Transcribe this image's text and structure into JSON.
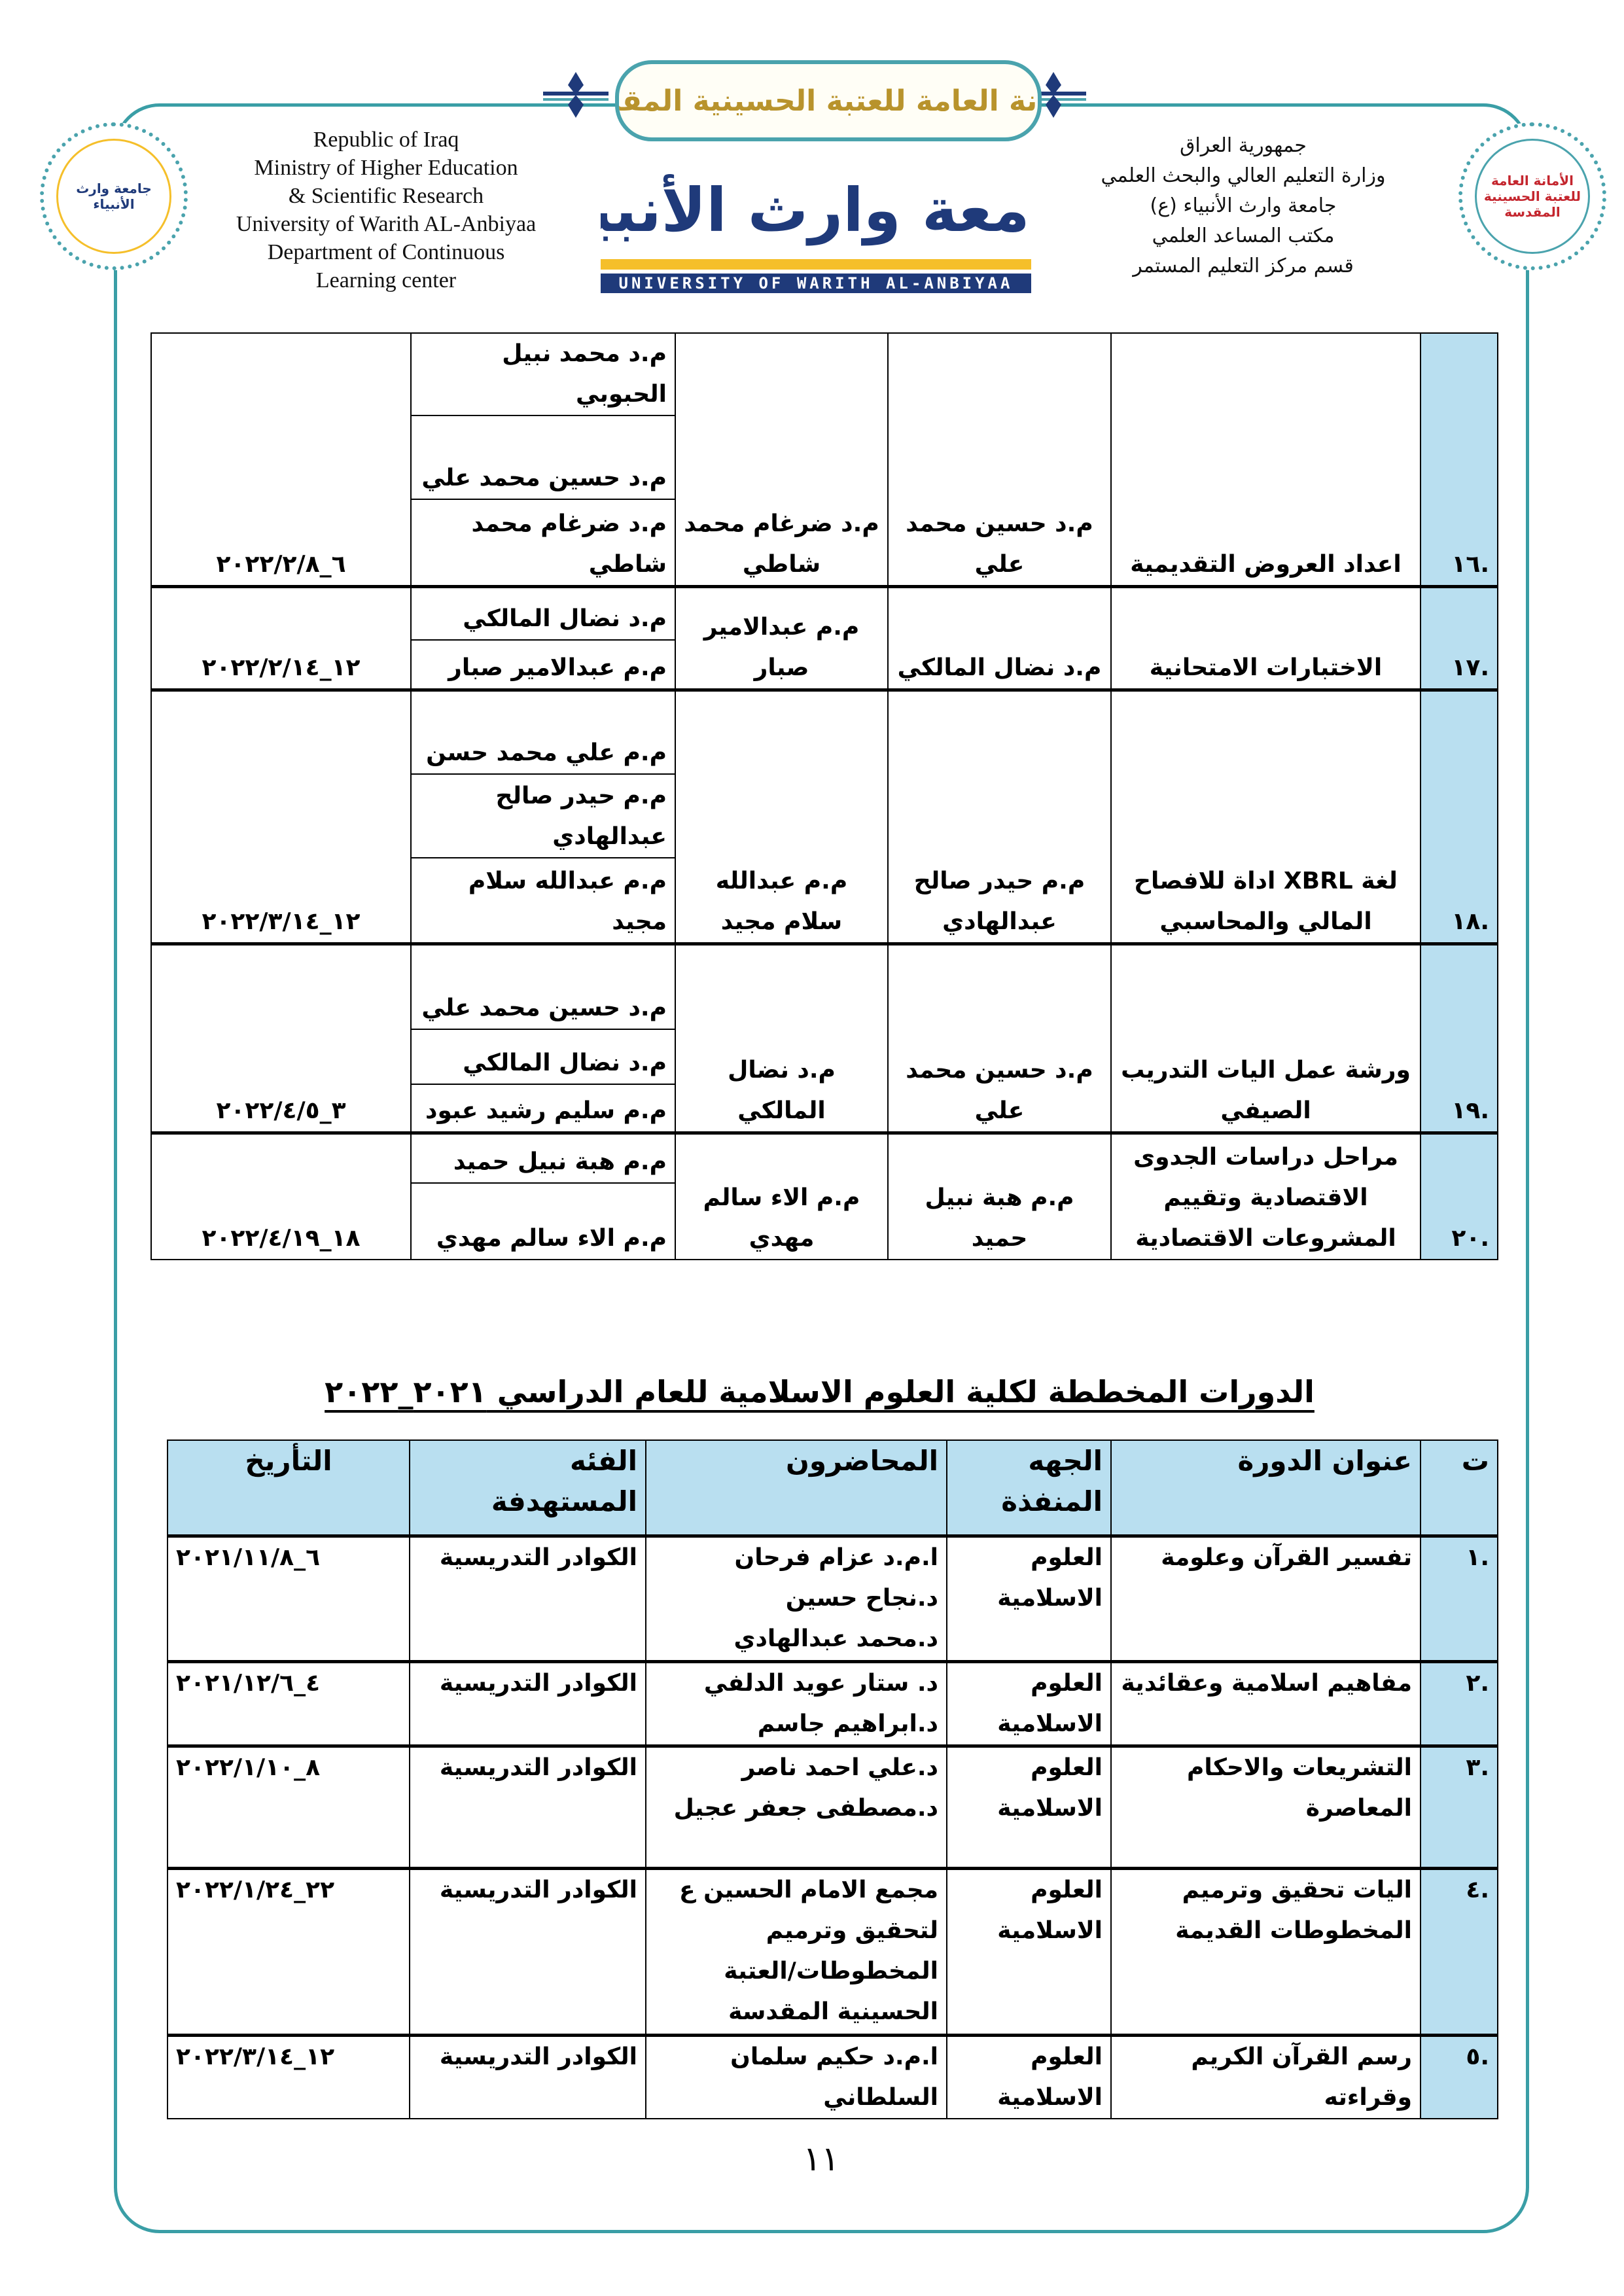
{
  "header": {
    "english_lines": [
      "Republic of Iraq",
      "Ministry of  Higher Education",
      "& Scientific Research",
      "University of  Warith AL-Anbiyaa",
      "Department of Continuous",
      "Learning center"
    ],
    "arabic_lines": [
      "جمهورية العراق",
      "وزارة التعليم العالي والبحث العلمي",
      "جامعة وارث الأنبياء (ع)",
      "مكتب المساعد العلمي",
      "قسم مركز التعليم المستمر"
    ],
    "banner_calligraphy": "الأمانة العامة للعتبة الحسينية المقدسة",
    "university_logo_arabic": "جامعة وارث الأنبياء",
    "university_logo_english": "UNIVERSITY OF WARITH AL-ANBIYAA",
    "left_seal_text": "جامعة وارث الأنبياء",
    "right_seal_text": "الأمانة العامة للعتبة الحسينية المقدسة",
    "frame_color": "#3a9ea6",
    "accent_blue": "#b9dff0"
  },
  "table1": {
    "rows": [
      {
        "num": ".١٦",
        "title": "اعداد العروض التقديمية",
        "lead": "م.د حسين محمد علي",
        "coord": "م.د ضرغام محمد شاطي",
        "lecturers": [
          "م.د محمد نبيل الحبوبي",
          "م.د حسين محمد علي",
          "م.د ضرغام محمد شاطي"
        ],
        "date": "٦_٢٠٢٢/٢/٨"
      },
      {
        "num": ".١٧",
        "title": "الاختبارات الامتحانية",
        "lead": "م.د نضال المالكي",
        "coord": "م.م عبدالامير صبار",
        "lecturers": [
          "م.د نضال المالكي",
          "م.م عبدالامير صبار"
        ],
        "date": "١٢_٢٠٢٢/٢/١٤"
      },
      {
        "num": ".١٨",
        "title": "لغة XBRL اداة للافصاح المالي والمحاسبي",
        "lead": "م.م حيدر صالح عبدالهادي",
        "coord": "م.م عبدالله سلام مجيد",
        "lecturers": [
          "م.م علي محمد حسن",
          "م.م حيدر صالح عبدالهادي",
          "م.م عبدالله سلام مجيد"
        ],
        "date": "١٢_٢٠٢٢/٣/١٤"
      },
      {
        "num": ".١٩",
        "title": "ورشة عمل اليات التدريب الصيفي",
        "lead": "م.د حسين محمد علي",
        "coord": "م.د نضال المالكي",
        "lecturers": [
          "م.د حسين محمد علي",
          "م.د نضال المالكي",
          "م.م سليم رشيد عبود"
        ],
        "date": "٣_٢٠٢٢/٤/٥"
      },
      {
        "num": ".٢٠",
        "title": "مراحل دراسات الجدوى الاقتصادية وتقييم المشروعات الاقتصادية",
        "lead": "م.م هبة نبيل حميد",
        "coord": "م.م الاء سالم مهدي",
        "lecturers": [
          "م.م هبة نبيل حميد",
          "م.م الاء سالم مهدي"
        ],
        "date": "١٨_٢٠٢٢/٤/١٩"
      }
    ]
  },
  "table2": {
    "title": "الدورات المخططة لكلية العلوم الاسلامية للعام الدراسي ٢٠٢١_٢٠٢٢",
    "headers": [
      "ت",
      "عنوان الدورة",
      "الجهه المنفذة",
      "المحاضرون",
      "الفئه المستهدفة",
      "التأريخ"
    ],
    "rows": [
      {
        "num": ".١",
        "title": "تفسير القرآن وعلومة",
        "executor": "العلوم الاسلامية",
        "lecturers": [
          "ا.م.د عزام فرحان",
          "د.نجاح حسين",
          "د.محمد عبدالهادي"
        ],
        "target": "الكوادر التدريسية",
        "date": "٦_٢٠٢١/١١/٨"
      },
      {
        "num": ".٢",
        "title": "مفاهيم اسلامية وعقائدية",
        "executor": "العلوم الاسلامية",
        "lecturers": [
          "د. ستار عويد الدلفي",
          "د.ابراهيم جاسم"
        ],
        "target": "الكوادر التدريسية",
        "date": "٤_٢٠٢١/١٢/٦"
      },
      {
        "num": ".٣",
        "title": "التشريعات والاحكام المعاصرة",
        "executor": "العلوم الاسلامية",
        "lecturers": [
          "د.علي احمد ناصر",
          "د.مصطفى جعفر عجيل"
        ],
        "target": "الكوادر التدريسية",
        "date": "٨_٢٠٢٢/١/١٠"
      },
      {
        "num": ".٤",
        "title": "اليات تحقيق وترميم المخطوطات القديمة",
        "executor": "العلوم الاسلامية",
        "lecturers": [
          "مجمع الامام الحسين ع لتحقيق وترميم المخطوطات/العتبة الحسينية المقدسة"
        ],
        "target": "الكوادر التدريسية",
        "date": "٢٢_٢٠٢٢/١/٢٤"
      },
      {
        "num": ".٥",
        "title": "رسم القرآن الكريم وقراءته",
        "executor": "العلوم الاسلامية",
        "lecturers": [
          "ا.م.د حكيم سلمان السلطاني"
        ],
        "target": "الكوادر التدريسية",
        "date": "١٢_٢٠٢٢/٣/١٤"
      }
    ]
  },
  "footer": {
    "page_number": "١١"
  }
}
